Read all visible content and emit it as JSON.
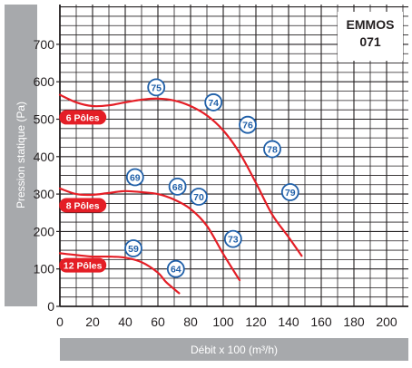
{
  "chart_data": {
    "type": "line",
    "model_label": [
      "EMMOS",
      "071"
    ],
    "xlabel": "Débit x 100 (m³/h)",
    "ylabel": "Pression statique  (Pa)",
    "xlim": [
      0,
      210
    ],
    "ylim": [
      0,
      800
    ],
    "x_ticks": [
      0,
      20,
      40,
      60,
      80,
      100,
      120,
      140,
      160,
      180,
      200
    ],
    "y_ticks": [
      0,
      100,
      200,
      300,
      400,
      500,
      600,
      700
    ],
    "grid": true,
    "line_color": "#e41e26",
    "badge_color": "#e41e26",
    "marker_color": "#1f5fa8",
    "series": [
      {
        "name": "6 Pôles",
        "x": [
          0,
          10,
          20,
          30,
          40,
          50,
          60,
          70,
          80,
          90,
          100,
          110,
          120,
          130,
          140,
          148
        ],
        "y": [
          565,
          545,
          535,
          537,
          545,
          552,
          555,
          550,
          535,
          510,
          470,
          410,
          330,
          245,
          185,
          135
        ],
        "markers": [
          {
            "label": "75",
            "x": 59,
            "y": 585
          },
          {
            "label": "74",
            "x": 94,
            "y": 545
          },
          {
            "label": "76",
            "x": 115,
            "y": 485
          },
          {
            "label": "78",
            "x": 130,
            "y": 420
          },
          {
            "label": "79",
            "x": 141,
            "y": 305
          }
        ]
      },
      {
        "name": "8 Pôles",
        "x": [
          0,
          10,
          20,
          30,
          40,
          50,
          60,
          70,
          80,
          90,
          100,
          110
        ],
        "y": [
          315,
          300,
          298,
          303,
          308,
          305,
          300,
          285,
          260,
          215,
          140,
          70
        ],
        "markers": [
          {
            "label": "69",
            "x": 46,
            "y": 345
          },
          {
            "label": "68",
            "x": 72,
            "y": 320
          },
          {
            "label": "70",
            "x": 85,
            "y": 293
          },
          {
            "label": "73",
            "x": 106,
            "y": 180
          }
        ]
      },
      {
        "name": "12 Pôles",
        "x": [
          0,
          10,
          20,
          30,
          40,
          50,
          60,
          65,
          73
        ],
        "y": [
          142,
          137,
          133,
          133,
          130,
          118,
          90,
          65,
          35
        ],
        "markers": [
          {
            "label": "59",
            "x": 45,
            "y": 155
          },
          {
            "label": "64",
            "x": 71,
            "y": 100
          }
        ]
      }
    ]
  }
}
